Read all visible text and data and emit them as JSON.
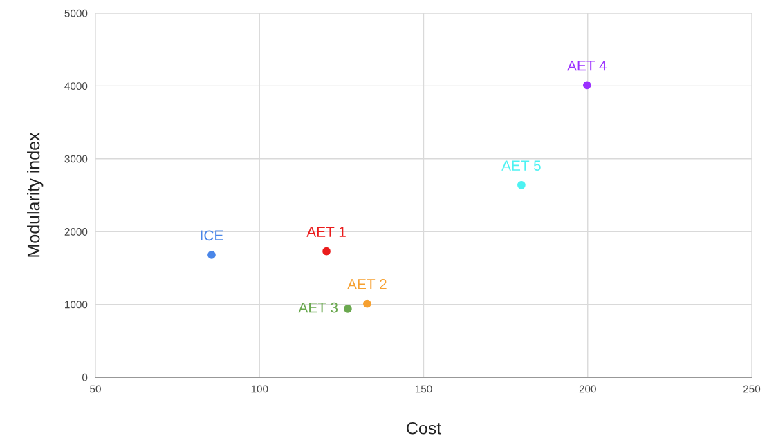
{
  "chart_data": {
    "type": "scatter",
    "xlabel": "Cost",
    "ylabel": "Modularity index",
    "xlim": [
      50,
      250
    ],
    "xticks": [
      50,
      100,
      150,
      200,
      250
    ],
    "ylim": [
      0,
      5000
    ],
    "yticks": [
      0,
      1000,
      2000,
      3000,
      4000,
      5000
    ],
    "grid": true,
    "legend": false,
    "marker": "circle",
    "series": [
      {
        "name": "ICE",
        "color": "#4a86e8",
        "x": [
          85.4
        ],
        "values": [
          1680
        ]
      },
      {
        "name": "AET 1",
        "color": "#ea1c1c",
        "x": [
          120.4
        ],
        "values": [
          1730
        ]
      },
      {
        "name": "AET 2",
        "color": "#f6a030",
        "x": [
          132.8
        ],
        "values": [
          1010
        ]
      },
      {
        "name": "AET 3",
        "color": "#6aa84f",
        "x": [
          126.9
        ],
        "values": [
          940
        ]
      },
      {
        "name": "AET 4",
        "color": "#9b30ff",
        "x": [
          199.8
        ],
        "values": [
          4010
        ]
      },
      {
        "name": "AET 5",
        "color": "#4df2f2",
        "x": [
          179.8
        ],
        "values": [
          2640
        ]
      }
    ]
  }
}
